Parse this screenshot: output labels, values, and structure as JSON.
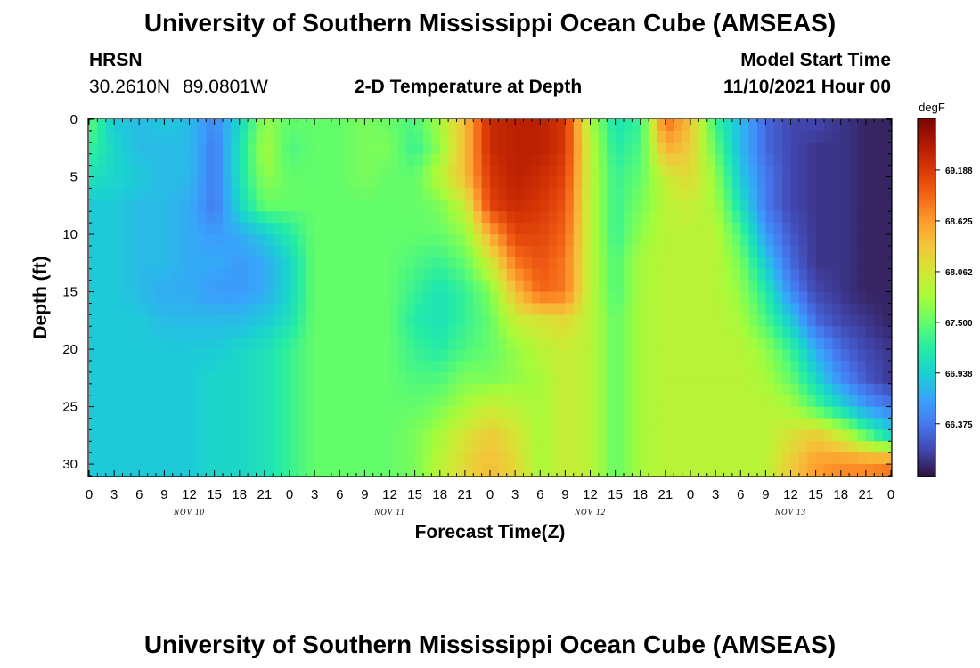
{
  "header": {
    "title": "University of Southern Mississippi Ocean Cube (AMSEAS)",
    "station": "HRSN",
    "lat": "30.2610N",
    "lon": "89.0801W",
    "plot_title": "2-D Temperature at Depth",
    "model_start_label": "Model Start Time",
    "model_start_value": "11/10/2021 Hour 00"
  },
  "footer": {
    "title": "University of Southern Mississippi Ocean Cube (AMSEAS)"
  },
  "chart_data": {
    "type": "heatmap",
    "title": "2-D Temperature at Depth",
    "xlabel": "Forecast Time(Z)",
    "ylabel": "Depth (ft)",
    "x_tick_labels": [
      "0",
      "3",
      "6",
      "9",
      "12",
      "15",
      "18",
      "21",
      "0",
      "3",
      "6",
      "9",
      "12",
      "15",
      "18",
      "21",
      "0",
      "3",
      "6",
      "9",
      "12",
      "15",
      "18",
      "21",
      "0",
      "3",
      "6",
      "9",
      "12",
      "15",
      "18",
      "21",
      "0"
    ],
    "x_day_labels": [
      "NOV 10",
      "NOV 11",
      "NOV 12",
      "NOV 13"
    ],
    "xlim_hours": [
      0,
      96
    ],
    "y_ticks": [
      0,
      5,
      10,
      15,
      20,
      25,
      30
    ],
    "ylim": [
      31,
      0
    ],
    "colorbar": {
      "unit": "degF",
      "ticks": [
        "69.188",
        "68.625",
        "68.062",
        "67.500",
        "66.938",
        "66.375"
      ],
      "range": [
        65.8,
        69.75
      ],
      "colors": [
        "#30123b",
        "#4145ab",
        "#4675ed",
        "#39a2fc",
        "#1bcfd4",
        "#24eca6",
        "#61fc6c",
        "#a4fc3b",
        "#d1e834",
        "#f3c63a",
        "#fe9b2d",
        "#f36315",
        "#d93806",
        "#b11901",
        "#7a0402"
      ]
    },
    "hour_columns": [
      0,
      3,
      6,
      9,
      12,
      15,
      18,
      21,
      24,
      27,
      30,
      33,
      36,
      39,
      42,
      45,
      48,
      51,
      54,
      57,
      60,
      63,
      66,
      69,
      72,
      75,
      78,
      81,
      84,
      87,
      90,
      93,
      96
    ],
    "depth_rows": [
      0,
      2.5,
      5,
      7.5,
      10,
      12.5,
      15,
      17.5,
      20,
      22.5,
      25,
      27.5,
      30
    ],
    "temperature_degF": [
      [
        67.5,
        66.9,
        66.8,
        66.9,
        66.8,
        66.5,
        67.0,
        67.7,
        67.5,
        67.5,
        67.5,
        67.6,
        67.5,
        67.4,
        67.8,
        68.4,
        69.3,
        69.4,
        69.4,
        69.2,
        67.8,
        67.1,
        67.3,
        68.9,
        68.4,
        67.3,
        66.8,
        66.3,
        66.1,
        66.1,
        66.0,
        65.9,
        65.9
      ],
      [
        67.3,
        67.0,
        66.8,
        66.8,
        66.8,
        66.4,
        67.1,
        67.8,
        67.4,
        67.5,
        67.5,
        67.6,
        67.6,
        67.3,
        67.7,
        68.4,
        69.3,
        69.4,
        69.4,
        69.2,
        67.9,
        67.2,
        67.4,
        68.5,
        68.3,
        67.5,
        66.8,
        66.3,
        66.1,
        66.0,
        66.0,
        65.9,
        65.9
      ],
      [
        67.1,
        67.0,
        66.9,
        66.8,
        66.8,
        66.4,
        67.1,
        67.7,
        67.5,
        67.5,
        67.5,
        67.6,
        67.5,
        67.5,
        67.9,
        68.4,
        69.2,
        69.4,
        69.3,
        69.1,
        67.9,
        67.3,
        67.5,
        68.0,
        68.2,
        67.7,
        66.9,
        66.4,
        66.1,
        66.0,
        66.0,
        65.9,
        65.9
      ],
      [
        66.9,
        66.9,
        66.8,
        66.8,
        66.7,
        66.4,
        67.0,
        67.5,
        67.5,
        67.5,
        67.5,
        67.5,
        67.5,
        67.5,
        67.6,
        68.0,
        69.1,
        69.3,
        69.2,
        69.0,
        67.9,
        67.3,
        67.6,
        67.9,
        68.0,
        67.8,
        67.1,
        66.4,
        66.1,
        66.0,
        66.0,
        65.9,
        65.9
      ],
      [
        66.9,
        66.9,
        66.8,
        66.8,
        66.7,
        66.6,
        66.7,
        66.9,
        67.2,
        67.5,
        67.5,
        67.5,
        67.5,
        67.5,
        67.5,
        67.7,
        68.5,
        69.1,
        69.1,
        68.9,
        67.9,
        67.3,
        67.7,
        67.9,
        67.9,
        67.9,
        67.4,
        66.6,
        66.2,
        66.0,
        66.0,
        65.9,
        65.9
      ],
      [
        66.9,
        66.9,
        66.8,
        66.8,
        66.7,
        66.7,
        66.6,
        66.7,
        67.0,
        67.5,
        67.5,
        67.5,
        67.5,
        67.4,
        67.3,
        67.5,
        68.0,
        68.8,
        69.0,
        68.8,
        67.9,
        67.4,
        67.8,
        67.9,
        67.9,
        67.9,
        67.6,
        66.9,
        66.3,
        66.0,
        66.0,
        65.9,
        65.9
      ],
      [
        66.9,
        66.9,
        66.8,
        66.7,
        66.7,
        66.6,
        66.6,
        66.7,
        67.0,
        67.5,
        67.5,
        67.5,
        67.5,
        67.3,
        67.1,
        67.3,
        67.6,
        68.4,
        68.9,
        68.8,
        67.9,
        67.4,
        67.8,
        67.9,
        67.9,
        67.9,
        67.7,
        67.2,
        66.5,
        66.1,
        66.0,
        65.9,
        65.9
      ],
      [
        66.9,
        66.9,
        66.9,
        66.8,
        66.8,
        66.8,
        66.8,
        66.9,
        67.1,
        67.5,
        67.5,
        67.5,
        67.5,
        67.2,
        67.1,
        67.3,
        67.5,
        68.0,
        68.1,
        68.2,
        67.9,
        67.5,
        67.8,
        67.9,
        67.9,
        67.9,
        67.8,
        67.4,
        66.9,
        66.3,
        66.1,
        66.0,
        65.9
      ],
      [
        66.9,
        66.9,
        66.9,
        66.9,
        66.9,
        66.9,
        67.0,
        67.1,
        67.3,
        67.5,
        67.5,
        67.5,
        67.5,
        67.3,
        67.2,
        67.4,
        67.5,
        67.7,
        67.9,
        68.0,
        67.9,
        67.5,
        67.8,
        67.9,
        67.9,
        67.9,
        67.9,
        67.7,
        67.3,
        66.7,
        66.3,
        66.1,
        66.0
      ],
      [
        66.9,
        66.9,
        66.9,
        66.9,
        66.9,
        67.0,
        67.0,
        67.1,
        67.3,
        67.5,
        67.5,
        67.5,
        67.5,
        67.4,
        67.4,
        67.6,
        67.6,
        67.7,
        67.8,
        68.0,
        67.9,
        67.5,
        67.8,
        67.9,
        67.9,
        67.9,
        67.9,
        67.8,
        67.5,
        67.0,
        66.5,
        66.2,
        66.0
      ],
      [
        66.9,
        66.9,
        66.9,
        66.9,
        66.9,
        67.0,
        67.0,
        67.1,
        67.3,
        67.5,
        67.5,
        67.5,
        67.5,
        67.5,
        67.6,
        67.8,
        68.0,
        67.9,
        67.8,
        68.0,
        67.9,
        67.5,
        67.8,
        67.9,
        67.9,
        67.9,
        67.9,
        67.9,
        67.8,
        67.4,
        67.0,
        66.6,
        66.4
      ],
      [
        66.9,
        66.9,
        66.9,
        66.9,
        66.9,
        67.0,
        67.0,
        67.1,
        67.3,
        67.5,
        67.5,
        67.5,
        67.5,
        67.6,
        67.8,
        68.1,
        68.3,
        68.1,
        67.8,
        68.0,
        67.9,
        67.5,
        67.8,
        67.9,
        67.9,
        67.9,
        67.9,
        67.9,
        68.1,
        68.3,
        68.0,
        67.5,
        67.0
      ],
      [
        66.9,
        66.9,
        66.9,
        66.9,
        66.9,
        67.0,
        67.0,
        67.1,
        67.3,
        67.5,
        67.5,
        67.5,
        67.5,
        67.6,
        67.9,
        68.2,
        68.4,
        68.2,
        67.8,
        68.0,
        67.9,
        67.5,
        67.8,
        67.9,
        67.9,
        67.9,
        67.9,
        67.9,
        68.3,
        68.6,
        68.7,
        68.7,
        68.8
      ]
    ]
  }
}
